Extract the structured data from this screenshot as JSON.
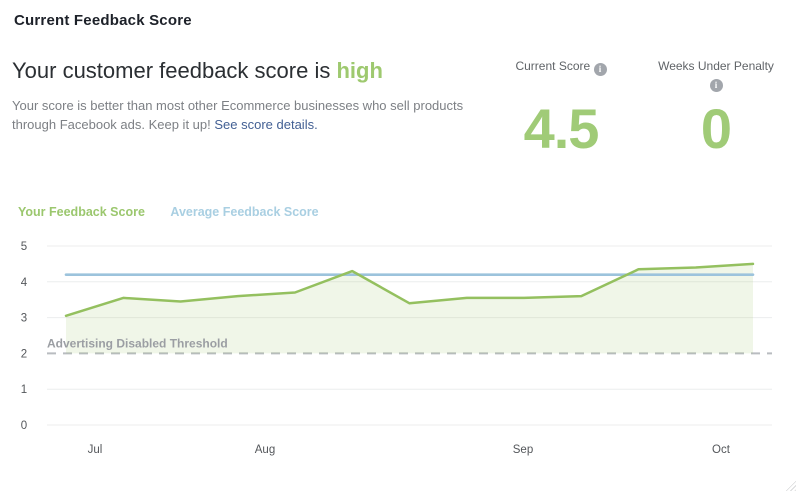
{
  "colors": {
    "green_line": "#94c05f",
    "green_fill": "rgba(148,192,94,0.14)",
    "green_text": "#9ec96f",
    "blue_line": "#9cc3dc",
    "blue_text": "#a9cfe2",
    "link": "#436094",
    "threshold_dash": "#b9bcc0",
    "gridline": "#ecedee",
    "axis_text": "#54575b",
    "threshold_text": "#9b9ea3"
  },
  "header": {
    "title": "Current Feedback Score"
  },
  "summary": {
    "heading_prefix": "Your customer feedback score is ",
    "heading_highlight": "high",
    "body": "Your score is better than most other Ecommerce businesses who sell products through Facebook ads. Keep it up! ",
    "link_label": "See score details."
  },
  "icons": {
    "info": "i"
  },
  "stats": {
    "current_score": {
      "label": "Current Score",
      "value": "4.5"
    },
    "weeks_under_penalty": {
      "label": "Weeks Under Penalty",
      "value": "0"
    }
  },
  "legend": {
    "series1": "Your Feedback Score",
    "series2": "Average Feedback Score"
  },
  "chart_data": {
    "type": "line",
    "title": "",
    "xlabel": "",
    "ylabel": "",
    "ylim": [
      0,
      5
    ],
    "yticks": [
      0,
      1,
      2,
      3,
      4,
      5
    ],
    "grid": true,
    "legend_position": "top-left",
    "x_tick_labels": [
      "Jul",
      "Aug",
      "Sep",
      "Oct"
    ],
    "series": [
      {
        "name": "Your Feedback Score",
        "style": "line-with-area-fill-down-to-threshold",
        "values": [
          3.05,
          3.55,
          3.45,
          3.6,
          3.7,
          4.3,
          3.4,
          3.55,
          3.55,
          3.6,
          4.35,
          4.4,
          4.5
        ]
      },
      {
        "name": "Average Feedback Score",
        "style": "horizontal-line",
        "constant_value": 4.2
      }
    ],
    "threshold": {
      "value": 2,
      "label": "Advertising Disabled Threshold",
      "style": "dashed"
    }
  }
}
